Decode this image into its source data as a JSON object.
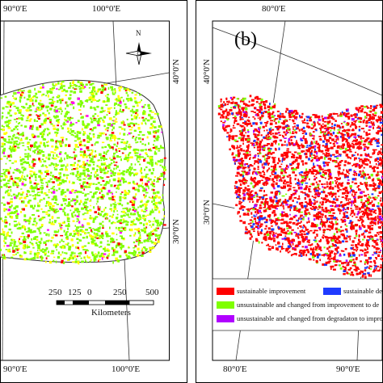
{
  "panel_a": {
    "lon_labels_top": [
      "90°0'E",
      "100°0'E"
    ],
    "lon_labels_bottom": [
      "90°0'E",
      "100°0'E"
    ],
    "lat_labels": [
      "40°0'N",
      "30°0'N"
    ],
    "north_arrow_label": "N",
    "scale_bar": {
      "ticks": [
        "250",
        "125",
        "0",
        "250",
        "500"
      ],
      "unit": "Kilometers"
    },
    "colors": {
      "improve": "#7fff00",
      "yellow": "#ffff00",
      "red": "#ff0000",
      "magenta": "#ff00ff"
    }
  },
  "panel_b": {
    "panel_label": "(b)",
    "lon_labels_top": [
      "80°0'E"
    ],
    "lon_labels_bottom": [
      "80°0'E",
      "90°0'E"
    ],
    "lat_labels": [
      "40°0'N",
      "30°0'N"
    ],
    "legend": [
      {
        "label": "sustainable improvement",
        "color": "#ff0000"
      },
      {
        "label": "sustainable de",
        "color": "#1f3bff"
      },
      {
        "label": "unsustainable and changed from improvement to de",
        "color": "#7fff00"
      },
      {
        "label": "unsustainable and changed from degradaton to impro",
        "color": "#b000ff"
      }
    ]
  }
}
